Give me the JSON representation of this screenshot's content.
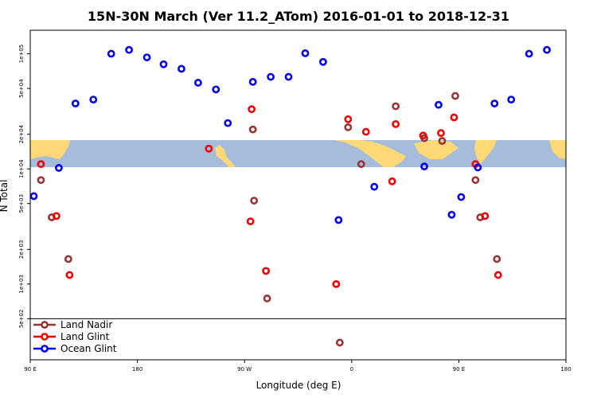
{
  "chart_data": {
    "type": "scatter",
    "title": "15N-30N March (Ver 11.2_ATom)   2016-01-01 to 2018-12-31",
    "xlabel": "Longitude (deg E)",
    "ylabel": "N Total",
    "x_scale": "linear",
    "y_scale": "log",
    "xlim": [
      90,
      540
    ],
    "ylim": [
      220,
      160000
    ],
    "x_ticks": [
      {
        "value": 90,
        "label": "90 E"
      },
      {
        "value": 180,
        "label": "180"
      },
      {
        "value": 270,
        "label": "90 W"
      },
      {
        "value": 360,
        "label": "0"
      },
      {
        "value": 450,
        "label": "90 E"
      },
      {
        "value": 540,
        "label": "180"
      }
    ],
    "y_ticks": [
      {
        "value": 500,
        "label": "5e+02"
      },
      {
        "value": 1000,
        "label": "1e+03"
      },
      {
        "value": 2000,
        "label": "2e+03"
      },
      {
        "value": 5000,
        "label": "5e+03"
      },
      {
        "value": 10000,
        "label": "1e+04"
      },
      {
        "value": 20000,
        "label": "2e+04"
      },
      {
        "value": 50000,
        "label": "5e+04"
      },
      {
        "value": 100000,
        "label": "1e+05"
      }
    ],
    "grid": false,
    "legend_position": "bottom-left",
    "legend_boundary_value": 500,
    "map_strip": {
      "ocean_color": "#a6bcdb",
      "land_color": "#fed976"
    },
    "series": [
      {
        "name": "Land Nadir",
        "color": "#993333",
        "points": [
          [
            99,
            8000
          ],
          [
            108,
            3800
          ],
          [
            122,
            1650
          ],
          [
            277,
            22000
          ],
          [
            278,
            5300
          ],
          [
            289,
            750
          ],
          [
            350,
            310
          ],
          [
            357,
            23000
          ],
          [
            368,
            11000
          ],
          [
            397,
            35000
          ],
          [
            421,
            18500
          ],
          [
            436,
            17500
          ],
          [
            447,
            43000
          ],
          [
            464,
            8000
          ],
          [
            468,
            3800
          ],
          [
            482,
            1650
          ]
        ]
      },
      {
        "name": "Land Glint",
        "color": "#ee0000",
        "points": [
          [
            99,
            11000
          ],
          [
            112,
            3900
          ],
          [
            123,
            1200
          ],
          [
            240,
            15000
          ],
          [
            276,
            33000
          ],
          [
            275,
            3500
          ],
          [
            288,
            1300
          ],
          [
            347,
            1000
          ],
          [
            357,
            27000
          ],
          [
            372,
            21000
          ],
          [
            394,
            7800
          ],
          [
            397,
            24500
          ],
          [
            420,
            19500
          ],
          [
            435,
            20500
          ],
          [
            446,
            28000
          ],
          [
            464,
            11000
          ],
          [
            472,
            3900
          ],
          [
            483,
            1200
          ]
        ]
      },
      {
        "name": "Ocean Glint",
        "color": "#0000ee",
        "points": [
          [
            93,
            5800
          ],
          [
            114,
            10200
          ],
          [
            128,
            37000
          ],
          [
            143,
            40000
          ],
          [
            158,
            100000
          ],
          [
            173,
            108000
          ],
          [
            188,
            93000
          ],
          [
            202,
            81000
          ],
          [
            217,
            74000
          ],
          [
            231,
            56000
          ],
          [
            246,
            49000
          ],
          [
            256,
            25000
          ],
          [
            277,
            57000
          ],
          [
            292,
            63000
          ],
          [
            307,
            63000
          ],
          [
            321,
            101000
          ],
          [
            336,
            85000
          ],
          [
            349,
            3600
          ],
          [
            379,
            7000
          ],
          [
            421,
            10500
          ],
          [
            433,
            36000
          ],
          [
            444,
            4000
          ],
          [
            452,
            5700
          ],
          [
            466,
            10300
          ],
          [
            480,
            37000
          ],
          [
            494,
            40000
          ],
          [
            509,
            100000
          ],
          [
            524,
            108000
          ]
        ]
      }
    ]
  }
}
